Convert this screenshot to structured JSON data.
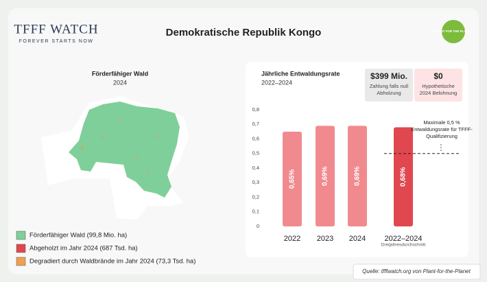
{
  "header": {
    "logo": "TFFF WATCH",
    "tagline": "FOREVER STARTS NOW",
    "title": "Demokratische Republik Kongo",
    "partner_logo": "PLANT FOR THE PLANET"
  },
  "map": {
    "title": "Förderfähiger Wald",
    "year": "2024",
    "legend": [
      {
        "label": "Förderfähiger Wald (99,8 Mio. ha)",
        "color": "#7fcf9a"
      },
      {
        "label": "Abgeholzt im Jahr 2024 (687 Tsd. ha)",
        "color": "#e0474f"
      },
      {
        "label": "Degradiert durch Waldbrände im Jahr 2024 (73,3 Tsd. ha)",
        "color": "#f0a050"
      }
    ]
  },
  "chart_data": {
    "type": "bar",
    "title": "Jährliche Entwaldungsrate",
    "subtitle": "2022–2024",
    "categories": [
      "2022",
      "2023",
      "2024",
      "2022–2024"
    ],
    "category_note": "Dreijahresdurchschnitt",
    "values": [
      0.65,
      0.69,
      0.69,
      0.68
    ],
    "value_labels": [
      "0,65%",
      "0,69%",
      "0,69%",
      "0,68%"
    ],
    "colors": [
      "#f08a8f",
      "#f08a8f",
      "#f08a8f",
      "#e0474f"
    ],
    "ylim": [
      0,
      0.8
    ],
    "yticks": [
      0,
      {
        "value": 0.1,
        "label": "0,1"
      },
      {
        "value": 0.2,
        "label": "0,2"
      },
      {
        "value": 0.3,
        "label": "0,3"
      },
      {
        "value": 0.4,
        "label": "0,4"
      },
      {
        "value": 0.5,
        "label": "0,5"
      },
      {
        "value": 0.6,
        "label": "0,6"
      },
      {
        "value": 0.7,
        "label": "0,7"
      },
      {
        "value": 0.8,
        "label": "0,8"
      }
    ],
    "threshold": 0.5,
    "threshold_label": "Maximale 0,5 % Entwaldungsrate für TFFF-Qualifizierung",
    "kpis": [
      {
        "value": "$399 Mio.",
        "label": "Zahlung falls null Abholzung"
      },
      {
        "value": "$0",
        "label": "Hypothetische 2024 Belohnung"
      }
    ]
  },
  "source": "Quelle: tfffwatch.org von Plant-for-the-Planet"
}
